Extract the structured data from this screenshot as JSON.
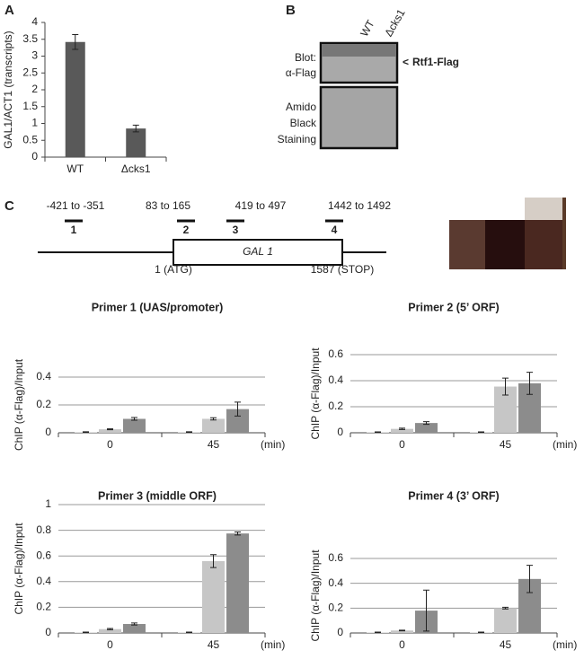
{
  "panel_labels": [
    "A",
    "B",
    "C"
  ],
  "chart_data": [
    {
      "type": "bar",
      "ylabel": "GAL1/ACT1 (transcripts)",
      "categories": [
        "WT",
        "Δcks1"
      ],
      "values": [
        3.42,
        0.85
      ],
      "errors": [
        0.22,
        0.1
      ],
      "color": "#595959",
      "ylim": [
        0,
        4
      ],
      "yticks": [
        0,
        0.5,
        1,
        1.5,
        2,
        2.5,
        3,
        3.5,
        4
      ],
      "grid": false
    },
    {
      "type": "bar",
      "title": "Primer 1 (UAS/promoter)",
      "ylabel": "ChIP (α-Flag)/Input",
      "xlabel": "(min)",
      "categories": [
        "0",
        "45"
      ],
      "series": [
        {
          "color": "#d9d9d9",
          "values": [
            0.005,
            0.005
          ],
          "errors": [
            0.002,
            0.002
          ]
        },
        {
          "color": "#c6c6c6",
          "values": [
            0.025,
            0.1
          ],
          "errors": [
            0.003,
            0.008
          ]
        },
        {
          "color": "#8c8c8c",
          "values": [
            0.1,
            0.17
          ],
          "errors": [
            0.01,
            0.05
          ]
        }
      ],
      "ylim": [
        0,
        0.4
      ],
      "yticks": [
        0,
        0.2,
        0.4
      ],
      "grid": true
    },
    {
      "type": "bar",
      "title": "Primer 2 (5’ ORF)",
      "ylabel": "ChIP (α-Flag)/Input",
      "xlabel": "(min)",
      "categories": [
        "0",
        "45"
      ],
      "series": [
        {
          "color": "#d9d9d9",
          "values": [
            0.005,
            0.005
          ],
          "errors": [
            0.002,
            0.002
          ]
        },
        {
          "color": "#c6c6c6",
          "values": [
            0.03,
            0.355
          ],
          "errors": [
            0.005,
            0.065
          ]
        },
        {
          "color": "#8c8c8c",
          "values": [
            0.075,
            0.38
          ],
          "errors": [
            0.01,
            0.085
          ]
        }
      ],
      "ylim": [
        0,
        0.6
      ],
      "yticks": [
        0,
        0.2,
        0.4,
        0.6
      ],
      "grid": true
    },
    {
      "type": "bar",
      "title": "Primer 3 (middle ORF)",
      "ylabel": "ChIP (α-Flag)/Input",
      "xlabel": "(min)",
      "categories": [
        "0",
        "45"
      ],
      "series": [
        {
          "color": "#d9d9d9",
          "values": [
            0.005,
            0.005
          ],
          "errors": [
            0.002,
            0.002
          ]
        },
        {
          "color": "#c6c6c6",
          "values": [
            0.03,
            0.56
          ],
          "errors": [
            0.005,
            0.05
          ]
        },
        {
          "color": "#8c8c8c",
          "values": [
            0.07,
            0.775
          ],
          "errors": [
            0.008,
            0.012
          ]
        }
      ],
      "ylim": [
        0,
        1
      ],
      "yticks": [
        0,
        0.2,
        0.4,
        0.6,
        0.8,
        1
      ],
      "grid": true
    },
    {
      "type": "bar",
      "title": "Primer 4 (3’ ORF)",
      "ylabel": "ChIP (α-Flag)/Input",
      "xlabel": "(min)",
      "categories": [
        "0",
        "45"
      ],
      "series": [
        {
          "color": "#d9d9d9",
          "values": [
            0.005,
            0.005
          ],
          "errors": [
            0.002,
            0.002
          ]
        },
        {
          "color": "#c6c6c6",
          "values": [
            0.02,
            0.2
          ],
          "errors": [
            0.003,
            0.007
          ]
        },
        {
          "color": "#8c8c8c",
          "values": [
            0.18,
            0.435
          ],
          "errors": [
            0.165,
            0.11
          ]
        }
      ],
      "ylim": [
        0,
        0.6
      ],
      "yticks": [
        0,
        0.2,
        0.4,
        0.6
      ],
      "grid": true
    }
  ],
  "blot": {
    "lanes": [
      "WT",
      "Δcks1"
    ],
    "blot_label": [
      "Blot:",
      "α-Flag"
    ],
    "band_label": "Rtf1-Flag",
    "stain_label": [
      "Amido",
      "Black",
      "Staining"
    ]
  },
  "gene_map": {
    "gene": "GAL 1",
    "start": "1 (ATG)",
    "stop": "1587 (STOP)",
    "primers": [
      {
        "label": "1",
        "range": "-421 to -351"
      },
      {
        "label": "2",
        "range": "83 to 165"
      },
      {
        "label": "3",
        "range": "419 to 497"
      },
      {
        "label": "4",
        "range": "1442 to 1492"
      }
    ]
  }
}
